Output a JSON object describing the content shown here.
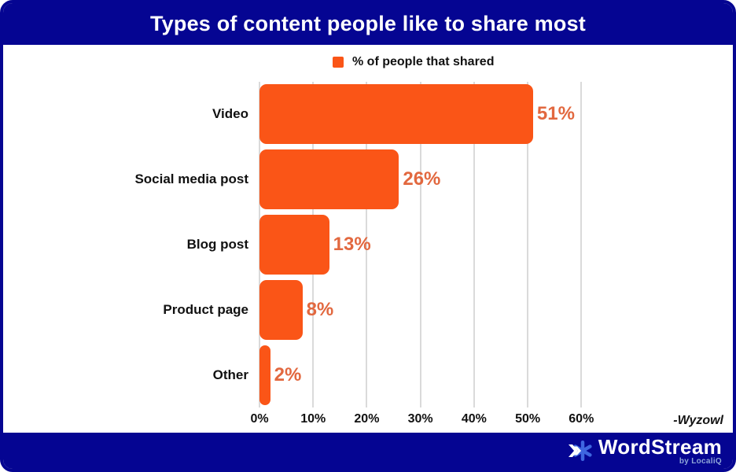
{
  "header": {
    "title": "Types of content people like to share most"
  },
  "legend": {
    "label": "% of people that shared",
    "swatch_color": "#FA5517"
  },
  "chart_data": {
    "type": "bar",
    "orientation": "horizontal",
    "title": "Types of content people like to share most",
    "series_name": "% of people that shared",
    "categories": [
      "Video",
      "Social media post",
      "Blog post",
      "Product page",
      "Other"
    ],
    "values": [
      51,
      26,
      13,
      8,
      2
    ],
    "value_labels": [
      "51%",
      "26%",
      "13%",
      "8%",
      "2%"
    ],
    "x_ticks": [
      "0%",
      "10%",
      "20%",
      "30%",
      "40%",
      "50%",
      "60%"
    ],
    "x_tick_values": [
      0,
      10,
      20,
      30,
      40,
      50,
      60
    ],
    "xlim": [
      0,
      66.7
    ],
    "grid": true,
    "legend_position": "top",
    "bar_color": "#FA5517",
    "value_label_color": "#E2683F"
  },
  "source": {
    "label": "-Wyzowl"
  },
  "footer": {
    "brand": "WordStream",
    "subbrand": "by LocaliQ"
  },
  "colors": {
    "navy": "#050592",
    "orange": "#FA5517",
    "gridline": "#DADADA"
  }
}
